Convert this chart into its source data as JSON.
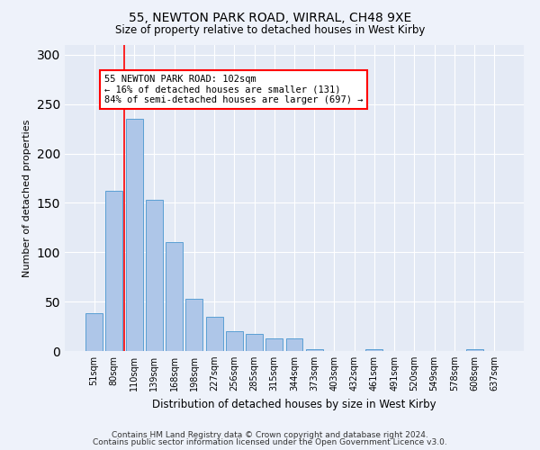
{
  "title1": "55, NEWTON PARK ROAD, WIRRAL, CH48 9XE",
  "title2": "Size of property relative to detached houses in West Kirby",
  "xlabel": "Distribution of detached houses by size in West Kirby",
  "ylabel": "Number of detached properties",
  "categories": [
    "51sqm",
    "80sqm",
    "110sqm",
    "139sqm",
    "168sqm",
    "198sqm",
    "227sqm",
    "256sqm",
    "285sqm",
    "315sqm",
    "344sqm",
    "373sqm",
    "403sqm",
    "432sqm",
    "461sqm",
    "491sqm",
    "520sqm",
    "549sqm",
    "578sqm",
    "608sqm",
    "637sqm"
  ],
  "values": [
    38,
    162,
    235,
    153,
    110,
    53,
    35,
    20,
    17,
    13,
    13,
    2,
    0,
    0,
    2,
    0,
    0,
    0,
    0,
    2,
    0
  ],
  "bar_color": "#aec6e8",
  "bar_edge_color": "#5a9fd4",
  "annotation_text": "55 NEWTON PARK ROAD: 102sqm\n← 16% of detached houses are smaller (131)\n84% of semi-detached houses are larger (697) →",
  "annotation_box_color": "white",
  "annotation_box_edge_color": "red",
  "vline_color": "red",
  "footer1": "Contains HM Land Registry data © Crown copyright and database right 2024.",
  "footer2": "Contains public sector information licensed under the Open Government Licence v3.0.",
  "ylim": [
    0,
    310
  ],
  "yticks": [
    0,
    50,
    100,
    150,
    200,
    250,
    300
  ],
  "background_color": "#eef2fa",
  "plot_background": "#e4eaf5"
}
